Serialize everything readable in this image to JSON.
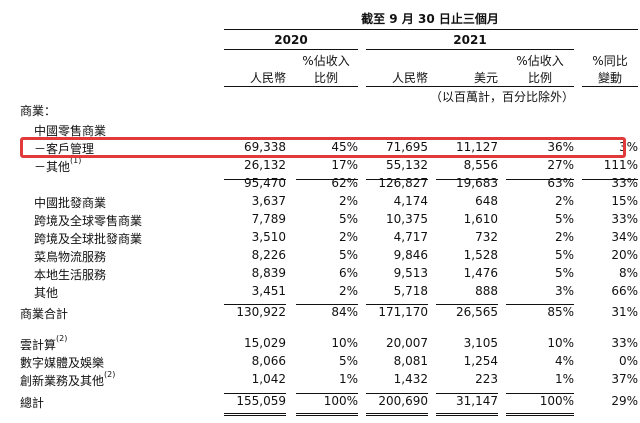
{
  "header": {
    "period": "截至 9 月 30 日止三個月",
    "year_2020": "2020",
    "year_2021": "2021",
    "col_rmb_2020": "人民幣",
    "col_pct_2020_l1": "%佔收入",
    "col_pct_2020_l2": "比例",
    "col_rmb_2021": "人民幣",
    "col_usd_2021": "美元",
    "col_pct_2021_l1": "%佔收入",
    "col_pct_2021_l2": "比例",
    "col_yoy_l1": "%同比",
    "col_yoy_l2": "變動",
    "unit_note": "（以百萬計，百分比除外）"
  },
  "rows": [
    {
      "label": "商業：",
      "sup": "",
      "values": [
        "",
        "",
        "",
        "",
        "",
        ""
      ]
    },
    {
      "label": "中國零售商業",
      "sup": "",
      "values": [
        "",
        "",
        "",
        "",
        "",
        ""
      ]
    },
    {
      "label": "－客戶管理",
      "sup": "",
      "values": [
        "69,338",
        "45%",
        "71,695",
        "11,127",
        "36%",
        "3%"
      ]
    },
    {
      "label": "－其他",
      "sup": "(1)",
      "values": [
        "26,132",
        "17%",
        "55,132",
        "8,556",
        "27%",
        "111%"
      ]
    },
    {
      "label": "",
      "sup": "",
      "values": [
        "95,470",
        "62%",
        "126,827",
        "19,683",
        "63%",
        "33%"
      ]
    },
    {
      "label": "中國批發商業",
      "sup": "",
      "values": [
        "3,637",
        "2%",
        "4,174",
        "648",
        "2%",
        "15%"
      ]
    },
    {
      "label": "跨境及全球零售商業",
      "sup": "",
      "values": [
        "7,789",
        "5%",
        "10,375",
        "1,610",
        "5%",
        "33%"
      ]
    },
    {
      "label": "跨境及全球批發商業",
      "sup": "",
      "values": [
        "3,510",
        "2%",
        "4,717",
        "732",
        "2%",
        "34%"
      ]
    },
    {
      "label": "菜鳥物流服務",
      "sup": "",
      "values": [
        "8,226",
        "5%",
        "9,846",
        "1,528",
        "5%",
        "20%"
      ]
    },
    {
      "label": "本地生活服務",
      "sup": "",
      "values": [
        "8,839",
        "6%",
        "9,513",
        "1,476",
        "5%",
        "8%"
      ]
    },
    {
      "label": "其他",
      "sup": "",
      "values": [
        "3,451",
        "2%",
        "5,718",
        "888",
        "3%",
        "66%"
      ]
    },
    {
      "label": "商業合計",
      "sup": "",
      "values": [
        "130,922",
        "84%",
        "171,170",
        "26,565",
        "85%",
        "31%"
      ]
    },
    {
      "label": "雲計算",
      "sup": "(2)",
      "values": [
        "15,029",
        "10%",
        "20,007",
        "3,105",
        "10%",
        "33%"
      ]
    },
    {
      "label": "數字媒體及娛樂",
      "sup": "",
      "values": [
        "8,066",
        "5%",
        "8,081",
        "1,254",
        "4%",
        "0%"
      ]
    },
    {
      "label": "創新業務及其他",
      "sup": "(2)",
      "values": [
        "1,042",
        "1%",
        "1,432",
        "223",
        "1%",
        "37%"
      ]
    },
    {
      "label": "總計",
      "sup": "",
      "values": [
        "155,059",
        "100%",
        "200,690",
        "31,147",
        "100%",
        "29%"
      ]
    }
  ]
}
